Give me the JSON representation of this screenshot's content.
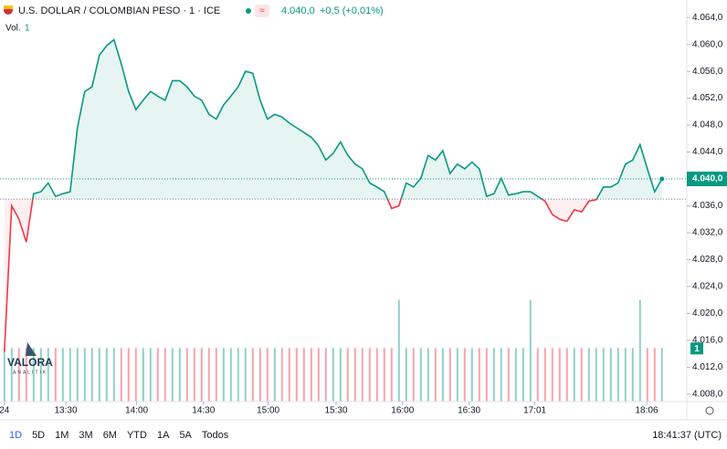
{
  "chart_data": {
    "type": "line",
    "title": "U.S. DOLLAR / COLOMBIAN PESO · 1 · ICE",
    "last_price": {
      "value": 4040,
      "label": "4.040,0"
    },
    "change": "+0,5 (+0,01%)",
    "volume_label": "Vol.",
    "volume_last": "1",
    "baseline": 4037,
    "color_up": "#089981",
    "color_down": "#f23645",
    "values": [
      4014.3,
      4036,
      4034,
      4030.6,
      4037.8,
      4038.1,
      4039.4,
      4037.4,
      4037.8,
      4038.1,
      4047.6,
      4053,
      4053.7,
      4058.4,
      4059.8,
      4060.7,
      4057.1,
      4053,
      4050.3,
      4051.7,
      4053,
      4052.3,
      4051.7,
      4054.6,
      4054.6,
      4053.7,
      4052.3,
      4051.7,
      4049.6,
      4048.9,
      4051,
      4052.3,
      4053.7,
      4056,
      4055.7,
      4051.7,
      4048.9,
      4049.6,
      4049.2,
      4048.3,
      4047.6,
      4046.9,
      4046.2,
      4044.9,
      4042.8,
      4043.8,
      4045.5,
      4043.5,
      4042.2,
      4041.5,
      4039.4,
      4038.8,
      4038.1,
      4035.6,
      4036,
      4039.4,
      4038.8,
      4040.1,
      4043.5,
      4042.8,
      4044.2,
      4040.8,
      4042.2,
      4041.5,
      4042.5,
      4041.5,
      4037.4,
      4037.8,
      4040.1,
      4037.6,
      4037.8,
      4038.1,
      4038.1,
      4037.4,
      4036.7,
      4034.7,
      4034,
      4033.7,
      4035.4,
      4035.1,
      4036.7,
      4036.9,
      4038.8,
      4038.8,
      4039.4,
      4042.2,
      4042.8,
      4045.1,
      4041.5,
      4038.1,
      4040
    ],
    "volume": [
      1,
      1,
      1,
      1,
      1,
      1,
      1,
      1,
      1,
      1,
      1,
      1,
      1,
      1,
      1,
      1,
      1,
      1,
      1,
      1,
      1,
      1,
      1,
      1,
      1,
      1,
      1,
      1,
      1,
      1,
      1,
      1,
      1,
      1,
      1,
      1,
      1,
      1,
      1,
      1,
      1,
      1,
      1,
      1,
      1,
      1,
      1,
      1,
      1,
      1,
      1,
      1,
      1,
      1,
      1.9,
      1,
      1,
      1,
      1,
      1,
      1,
      1,
      1,
      1,
      1,
      1,
      1,
      1,
      1,
      1,
      1,
      1,
      1.9,
      1,
      1,
      1,
      1,
      1,
      1,
      1,
      1,
      1,
      1,
      1,
      1,
      1,
      1,
      1.9,
      1,
      1,
      1
    ],
    "xlim": [
      -0.6,
      93.4
    ],
    "xticks": [
      {
        "value": 0,
        "label": "24"
      },
      {
        "value": 8.4,
        "label": "13:30"
      },
      {
        "value": 18.1,
        "label": "14:00"
      },
      {
        "value": 27.25,
        "label": "14:30"
      },
      {
        "value": 36.1,
        "label": "15:00"
      },
      {
        "value": 45.4,
        "label": "15:30"
      },
      {
        "value": 54.5,
        "label": "16:00"
      },
      {
        "value": 63.6,
        "label": "16:30"
      },
      {
        "value": 72.6,
        "label": "17:01"
      },
      {
        "value": 87.9,
        "label": "18:06"
      }
    ],
    "ylim": [
      4006.9,
      4066.6
    ],
    "yticks": [
      {
        "value": 4064,
        "label": "4.064,0"
      },
      {
        "value": 4060,
        "label": "4.060,0"
      },
      {
        "value": 4056,
        "label": "4.056,0"
      },
      {
        "value": 4052,
        "label": "4.052,0"
      },
      {
        "value": 4048,
        "label": "4.048,0"
      },
      {
        "value": 4044,
        "label": "4.044,0"
      },
      {
        "value": 4036,
        "label": "4.036,0"
      },
      {
        "value": 4032,
        "label": "4.032,0"
      },
      {
        "value": 4028,
        "label": "4.028,0"
      },
      {
        "value": 4024,
        "label": "4.024,0"
      },
      {
        "value": 4020,
        "label": "4.020,0"
      },
      {
        "value": 4016,
        "label": "4.016,0"
      },
      {
        "value": 4012,
        "label": "4.012,0"
      },
      {
        "value": 4008,
        "label": "4.008,0"
      }
    ],
    "y2lim": [
      0,
      7.5
    ],
    "ranges": [
      "1D",
      "5D",
      "1M",
      "3M",
      "6M",
      "YTD",
      "1A",
      "5A",
      "Todos"
    ],
    "clock": "18:41:37 (UTC)",
    "logo": "VALORA",
    "logo_sub": "ANALITIK"
  }
}
